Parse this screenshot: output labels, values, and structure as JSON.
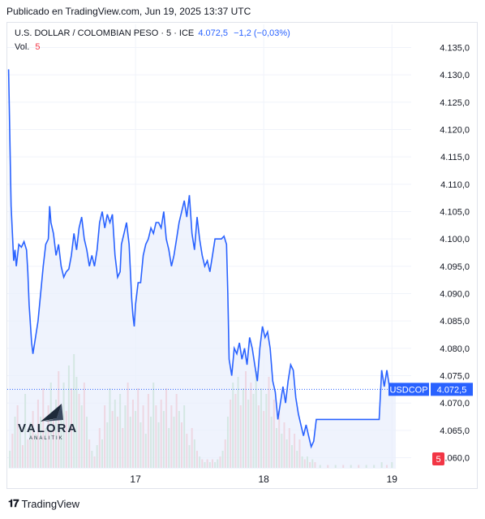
{
  "published": "Publicado en TradingView.com, Jun 19, 2025 13:37 UTC",
  "legend": {
    "symbol": "U.S. DOLLAR / COLOMBIAN PESO · 5 · ICE",
    "last": "4.072,5",
    "change": "−1,2 (−0,03%)",
    "vol_label": "Vol.",
    "vol_value": "5"
  },
  "watermark": {
    "name": "VALORA",
    "sub": "ANALITIK"
  },
  "footer": {
    "brand": "TradingView"
  },
  "colors": {
    "line": "#2962ff",
    "area": "#e8eefc",
    "vol_up": "#a5d6a7",
    "vol_down": "#faa1a4",
    "label_bg": "#2962ff"
  },
  "chart_data": {
    "type": "area",
    "y_ticks": [
      "4.135,0",
      "4.130,0",
      "4.125,0",
      "4.120,0",
      "4.115,0",
      "4.110,0",
      "4.105,0",
      "4.100,0",
      "4.095,0",
      "4.090,0",
      "4.085,0",
      "4.080,0",
      "4.075,0",
      "4.070,0",
      "4.065,0",
      "4.060,0"
    ],
    "ylim": [
      4058,
      4137
    ],
    "x_ticks": [
      {
        "label": "17",
        "x": 0.5
      },
      {
        "label": "18",
        "x": 1.5
      },
      {
        "label": "19",
        "x": 2.5
      }
    ],
    "xlim": [
      -0.5,
      2.65
    ],
    "last_label": {
      "symbol": "USDCOP",
      "value": "4.072,5",
      "y": 4072.5
    },
    "volume_label": "5",
    "series": [
      {
        "values": [
          [
            -0.49,
            4131
          ],
          [
            -0.47,
            4106
          ],
          [
            -0.45,
            4096
          ],
          [
            -0.44,
            4098
          ],
          [
            -0.43,
            4095
          ],
          [
            -0.41,
            4099
          ],
          [
            -0.39,
            4098.5
          ],
          [
            -0.37,
            4099.5
          ],
          [
            -0.35,
            4098
          ],
          [
            -0.34,
            4094
          ],
          [
            -0.33,
            4088
          ],
          [
            -0.31,
            4081
          ],
          [
            -0.3,
            4079
          ],
          [
            -0.28,
            4082
          ],
          [
            -0.26,
            4085
          ],
          [
            -0.24,
            4090
          ],
          [
            -0.22,
            4095
          ],
          [
            -0.2,
            4099
          ],
          [
            -0.18,
            4100
          ],
          [
            -0.17,
            4106
          ],
          [
            -0.16,
            4103
          ],
          [
            -0.14,
            4101
          ],
          [
            -0.12,
            4097
          ],
          [
            -0.1,
            4099
          ],
          [
            -0.08,
            4095
          ],
          [
            -0.06,
            4093
          ],
          [
            -0.04,
            4094
          ],
          [
            -0.02,
            4094.5
          ],
          [
            0.0,
            4097
          ],
          [
            0.02,
            4101
          ],
          [
            0.04,
            4098
          ],
          [
            0.06,
            4102
          ],
          [
            0.08,
            4104
          ],
          [
            0.1,
            4100
          ],
          [
            0.12,
            4098
          ],
          [
            0.14,
            4095
          ],
          [
            0.16,
            4097
          ],
          [
            0.18,
            4095
          ],
          [
            0.2,
            4098
          ],
          [
            0.22,
            4103
          ],
          [
            0.24,
            4105
          ],
          [
            0.26,
            4102
          ],
          [
            0.28,
            4104.5
          ],
          [
            0.3,
            4103
          ],
          [
            0.32,
            4104.5
          ],
          [
            0.34,
            4097
          ],
          [
            0.36,
            4093
          ],
          [
            0.38,
            4094
          ],
          [
            0.39,
            4099
          ],
          [
            0.41,
            4101
          ],
          [
            0.43,
            4103
          ],
          [
            0.45,
            4099
          ],
          [
            0.46,
            4094
          ],
          [
            0.47,
            4089
          ],
          [
            0.48,
            4086
          ],
          [
            0.49,
            4084
          ],
          [
            0.5,
            4088
          ],
          [
            0.52,
            4092
          ],
          [
            0.54,
            4092
          ],
          [
            0.56,
            4097
          ],
          [
            0.58,
            4099
          ],
          [
            0.6,
            4100
          ],
          [
            0.62,
            4102
          ],
          [
            0.64,
            4101
          ],
          [
            0.66,
            4103
          ],
          [
            0.68,
            4103
          ],
          [
            0.7,
            4102
          ],
          [
            0.72,
            4105
          ],
          [
            0.74,
            4100
          ],
          [
            0.76,
            4098
          ],
          [
            0.78,
            4095
          ],
          [
            0.8,
            4097
          ],
          [
            0.82,
            4100
          ],
          [
            0.84,
            4103
          ],
          [
            0.86,
            4105
          ],
          [
            0.88,
            4107
          ],
          [
            0.9,
            4104
          ],
          [
            0.92,
            4108
          ],
          [
            0.94,
            4101
          ],
          [
            0.96,
            4098
          ],
          [
            0.98,
            4104
          ],
          [
            1.0,
            4100
          ],
          [
            1.02,
            4097
          ],
          [
            1.04,
            4095
          ],
          [
            1.06,
            4096
          ],
          [
            1.08,
            4094
          ],
          [
            1.1,
            4097
          ],
          [
            1.12,
            4100
          ],
          [
            1.14,
            4100
          ],
          [
            1.17,
            4100
          ],
          [
            1.19,
            4100.5
          ],
          [
            1.21,
            4099
          ],
          [
            1.22,
            4090
          ],
          [
            1.23,
            4078
          ],
          [
            1.25,
            4075
          ],
          [
            1.27,
            4080
          ],
          [
            1.29,
            4079
          ],
          [
            1.31,
            4081
          ],
          [
            1.33,
            4078
          ],
          [
            1.35,
            4080
          ],
          [
            1.37,
            4077
          ],
          [
            1.39,
            4082
          ],
          [
            1.41,
            4080
          ],
          [
            1.43,
            4077
          ],
          [
            1.45,
            4074
          ],
          [
            1.47,
            4080
          ],
          [
            1.49,
            4084
          ],
          [
            1.51,
            4082
          ],
          [
            1.53,
            4083
          ],
          [
            1.55,
            4080
          ],
          [
            1.57,
            4074
          ],
          [
            1.59,
            4072
          ],
          [
            1.61,
            4067
          ],
          [
            1.63,
            4070
          ],
          [
            1.65,
            4073
          ],
          [
            1.67,
            4070
          ],
          [
            1.69,
            4074
          ],
          [
            1.71,
            4077
          ],
          [
            1.73,
            4076
          ],
          [
            1.75,
            4071
          ],
          [
            1.77,
            4068
          ],
          [
            1.79,
            4066
          ],
          [
            1.81,
            4064
          ],
          [
            1.83,
            4066
          ],
          [
            1.85,
            4064
          ],
          [
            1.87,
            4062
          ],
          [
            1.89,
            4063
          ],
          [
            1.91,
            4067
          ],
          [
            1.93,
            4067
          ],
          [
            2.0,
            4067
          ],
          [
            2.08,
            4067
          ],
          [
            2.15,
            4067
          ],
          [
            2.22,
            4067
          ],
          [
            2.3,
            4067
          ],
          [
            2.37,
            4067
          ],
          [
            2.4,
            4067
          ],
          [
            2.42,
            4076
          ],
          [
            2.44,
            4073
          ],
          [
            2.46,
            4076
          ],
          [
            2.48,
            4073
          ],
          [
            2.5,
            4072.5
          ],
          [
            2.53,
            4072.5
          ]
        ]
      }
    ],
    "volume": {
      "max": 40,
      "bars": [
        [
          -0.48,
          6,
          "up"
        ],
        [
          -0.46,
          12,
          "down"
        ],
        [
          -0.44,
          18,
          "up"
        ],
        [
          -0.42,
          22,
          "down"
        ],
        [
          -0.4,
          14,
          "up"
        ],
        [
          -0.38,
          8,
          "down"
        ],
        [
          -0.36,
          26,
          "up"
        ],
        [
          -0.34,
          10,
          "down"
        ],
        [
          -0.32,
          16,
          "up"
        ],
        [
          -0.3,
          20,
          "down"
        ],
        [
          -0.28,
          12,
          "up"
        ],
        [
          -0.26,
          24,
          "down"
        ],
        [
          -0.24,
          18,
          "up"
        ],
        [
          -0.22,
          28,
          "down"
        ],
        [
          -0.2,
          14,
          "up"
        ],
        [
          -0.18,
          22,
          "down"
        ],
        [
          -0.16,
          30,
          "up"
        ],
        [
          -0.14,
          18,
          "down"
        ],
        [
          -0.12,
          24,
          "up"
        ],
        [
          -0.1,
          34,
          "down"
        ],
        [
          -0.08,
          22,
          "up"
        ],
        [
          -0.06,
          30,
          "up"
        ],
        [
          -0.04,
          20,
          "down"
        ],
        [
          -0.02,
          36,
          "up"
        ],
        [
          0.0,
          28,
          "down"
        ],
        [
          0.02,
          40,
          "up"
        ],
        [
          0.04,
          32,
          "up"
        ],
        [
          0.06,
          26,
          "down"
        ],
        [
          0.08,
          22,
          "up"
        ],
        [
          0.1,
          30,
          "down"
        ],
        [
          0.12,
          18,
          "up"
        ],
        [
          0.14,
          10,
          "down"
        ],
        [
          0.16,
          6,
          "up"
        ],
        [
          0.18,
          4,
          "down"
        ],
        [
          0.2,
          8,
          "up"
        ],
        [
          0.22,
          14,
          "down"
        ],
        [
          0.24,
          10,
          "up"
        ],
        [
          0.26,
          22,
          "down"
        ],
        [
          0.28,
          16,
          "up"
        ],
        [
          0.3,
          28,
          "up"
        ],
        [
          0.32,
          20,
          "down"
        ],
        [
          0.34,
          24,
          "up"
        ],
        [
          0.36,
          18,
          "down"
        ],
        [
          0.38,
          26,
          "up"
        ],
        [
          0.4,
          14,
          "down"
        ],
        [
          0.42,
          22,
          "up"
        ],
        [
          0.44,
          30,
          "down"
        ],
        [
          0.46,
          18,
          "up"
        ],
        [
          0.48,
          24,
          "down"
        ],
        [
          0.5,
          20,
          "up"
        ],
        [
          0.52,
          28,
          "down"
        ],
        [
          0.54,
          16,
          "up"
        ],
        [
          0.56,
          22,
          "down"
        ],
        [
          0.58,
          12,
          "up"
        ],
        [
          0.6,
          26,
          "down"
        ],
        [
          0.62,
          18,
          "up"
        ],
        [
          0.64,
          30,
          "up"
        ],
        [
          0.66,
          22,
          "down"
        ],
        [
          0.68,
          16,
          "up"
        ],
        [
          0.7,
          24,
          "down"
        ],
        [
          0.72,
          20,
          "up"
        ],
        [
          0.74,
          28,
          "down"
        ],
        [
          0.76,
          14,
          "up"
        ],
        [
          0.78,
          22,
          "down"
        ],
        [
          0.8,
          18,
          "up"
        ],
        [
          0.82,
          26,
          "down"
        ],
        [
          0.84,
          20,
          "up"
        ],
        [
          0.86,
          16,
          "down"
        ],
        [
          0.88,
          22,
          "up"
        ],
        [
          0.9,
          12,
          "down"
        ],
        [
          0.92,
          8,
          "up"
        ],
        [
          0.94,
          14,
          "down"
        ],
        [
          0.96,
          10,
          "up"
        ],
        [
          0.98,
          6,
          "down"
        ],
        [
          1.0,
          4,
          "up"
        ],
        [
          1.02,
          3,
          "down"
        ],
        [
          1.04,
          2,
          "up"
        ],
        [
          1.06,
          3,
          "down"
        ],
        [
          1.08,
          2,
          "up"
        ],
        [
          1.1,
          3,
          "down"
        ],
        [
          1.12,
          2,
          "up"
        ],
        [
          1.14,
          3,
          "up"
        ],
        [
          1.16,
          4,
          "down"
        ],
        [
          1.18,
          6,
          "up"
        ],
        [
          1.2,
          10,
          "down"
        ],
        [
          1.22,
          18,
          "up"
        ],
        [
          1.24,
          24,
          "down"
        ],
        [
          1.26,
          30,
          "up"
        ],
        [
          1.28,
          26,
          "down"
        ],
        [
          1.3,
          32,
          "up"
        ],
        [
          1.32,
          22,
          "down"
        ],
        [
          1.34,
          28,
          "up"
        ],
        [
          1.36,
          34,
          "down"
        ],
        [
          1.38,
          24,
          "up"
        ],
        [
          1.4,
          30,
          "down"
        ],
        [
          1.42,
          26,
          "up"
        ],
        [
          1.44,
          34,
          "up"
        ],
        [
          1.46,
          22,
          "down"
        ],
        [
          1.48,
          28,
          "up"
        ],
        [
          1.5,
          20,
          "down"
        ],
        [
          1.52,
          26,
          "up"
        ],
        [
          1.54,
          32,
          "down"
        ],
        [
          1.56,
          18,
          "up"
        ],
        [
          1.58,
          24,
          "down"
        ],
        [
          1.6,
          14,
          "up"
        ],
        [
          1.62,
          20,
          "down"
        ],
        [
          1.64,
          12,
          "up"
        ],
        [
          1.66,
          16,
          "down"
        ],
        [
          1.68,
          10,
          "up"
        ],
        [
          1.7,
          14,
          "down"
        ],
        [
          1.72,
          8,
          "up"
        ],
        [
          1.74,
          12,
          "down"
        ],
        [
          1.76,
          6,
          "up"
        ],
        [
          1.78,
          10,
          "down"
        ],
        [
          1.8,
          4,
          "up"
        ],
        [
          1.82,
          3,
          "down"
        ],
        [
          1.84,
          4,
          "up"
        ],
        [
          1.86,
          2,
          "down"
        ],
        [
          1.88,
          3,
          "up"
        ],
        [
          1.9,
          2,
          "down"
        ],
        [
          1.94,
          1,
          "up"
        ],
        [
          2.0,
          1,
          "down"
        ],
        [
          2.06,
          1,
          "up"
        ],
        [
          2.12,
          1,
          "down"
        ],
        [
          2.18,
          1,
          "up"
        ],
        [
          2.24,
          1,
          "down"
        ],
        [
          2.3,
          1,
          "up"
        ],
        [
          2.36,
          1,
          "up"
        ],
        [
          2.42,
          2,
          "up"
        ],
        [
          2.46,
          1,
          "down"
        ],
        [
          2.5,
          2,
          "up"
        ]
      ]
    }
  }
}
